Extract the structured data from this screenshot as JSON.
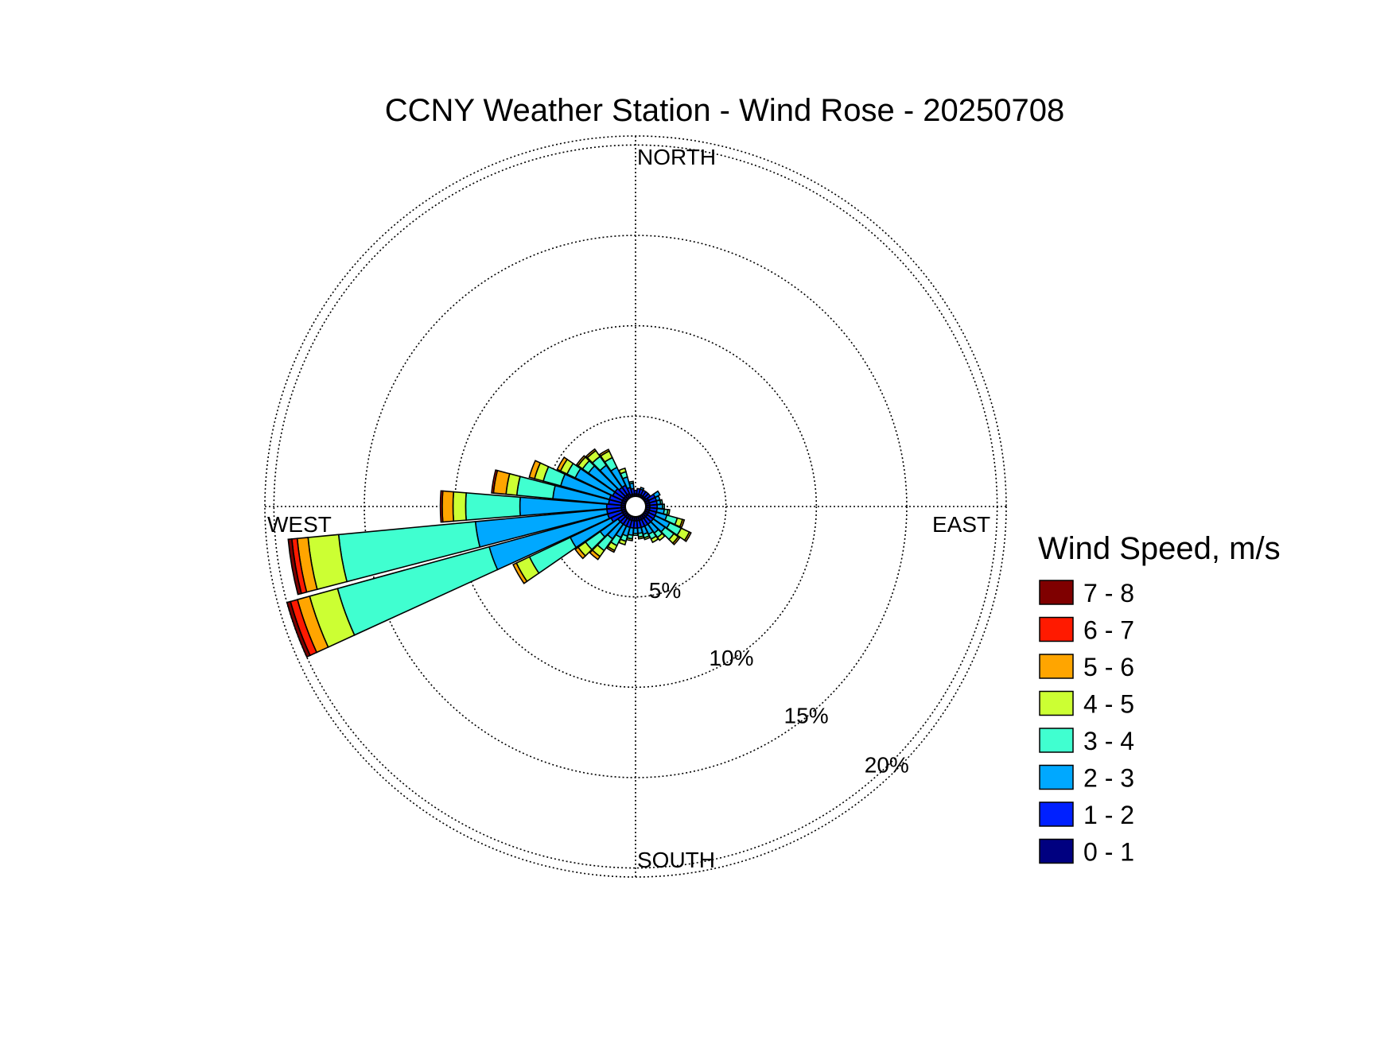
{
  "chart_data": {
    "type": "wind_rose",
    "title": "CCNY Weather Station - Wind Rose - 20250708",
    "direction_labels": {
      "north": "NORTH",
      "east": "EAST",
      "south": "SOUTH",
      "west": "WEST"
    },
    "radial_unit": "%",
    "radial_ticks": [
      5,
      10,
      15,
      20
    ],
    "radial_tick_labels": [
      "5%",
      "10%",
      "15%",
      "20%"
    ],
    "r_max": 20.5,
    "grid": true,
    "sector_count": 36,
    "legend": {
      "title": "Wind Speed, m/s",
      "position": "right",
      "bins": [
        {
          "label": "7 - 8",
          "color": "#7f0000"
        },
        {
          "label": "6 - 7",
          "color": "#ff1a00"
        },
        {
          "label": "5 - 6",
          "color": "#ffa500"
        },
        {
          "label": "4 - 5",
          "color": "#ccff33"
        },
        {
          "label": "3 - 4",
          "color": "#40ffd0"
        },
        {
          "label": "2 - 3",
          "color": "#00a8ff"
        },
        {
          "label": "1 - 2",
          "color": "#0020ff"
        },
        {
          "label": "0 - 1",
          "color": "#000080"
        }
      ]
    },
    "speed_bins_order": [
      "0 - 1",
      "1 - 2",
      "2 - 3",
      "3 - 4",
      "4 - 5",
      "5 - 6",
      "6 - 7",
      "7 - 8"
    ],
    "sectors": [
      {
        "direction": 0,
        "values": [
          0.3,
          0.2,
          0.0,
          0,
          0,
          0,
          0,
          0
        ]
      },
      {
        "direction": 10,
        "values": [
          0.3,
          0.3,
          0.0,
          0,
          0,
          0,
          0,
          0
        ]
      },
      {
        "direction": 20,
        "values": [
          0.3,
          0.3,
          0.1,
          0,
          0,
          0,
          0,
          0
        ]
      },
      {
        "direction": 30,
        "values": [
          0.3,
          0.3,
          0.0,
          0,
          0,
          0,
          0,
          0
        ]
      },
      {
        "direction": 40,
        "values": [
          0.3,
          0.3,
          0.0,
          0,
          0,
          0,
          0,
          0
        ]
      },
      {
        "direction": 50,
        "values": [
          0.3,
          0.3,
          0.0,
          0,
          0,
          0,
          0,
          0
        ]
      },
      {
        "direction": 60,
        "values": [
          0.4,
          0.4,
          0.3,
          0,
          0,
          0,
          0,
          0
        ]
      },
      {
        "direction": 70,
        "values": [
          0.4,
          0.4,
          0.2,
          0,
          0,
          0,
          0,
          0
        ]
      },
      {
        "direction": 80,
        "values": [
          0.4,
          0.4,
          0.2,
          0.1,
          0,
          0,
          0,
          0
        ]
      },
      {
        "direction": 90,
        "values": [
          0.4,
          0.4,
          0.3,
          0.1,
          0,
          0,
          0,
          0
        ]
      },
      {
        "direction": 100,
        "values": [
          0.4,
          0.4,
          0.4,
          0.2,
          0.1,
          0,
          0,
          0
        ]
      },
      {
        "direction": 110,
        "values": [
          0.4,
          0.4,
          0.6,
          0.6,
          0.3,
          0.1,
          0,
          0
        ]
      },
      {
        "direction": 120,
        "values": [
          0.4,
          0.4,
          0.9,
          0.7,
          0.5,
          0.1,
          0,
          0
        ]
      },
      {
        "direction": 130,
        "values": [
          0.4,
          0.4,
          0.8,
          0.6,
          0.3,
          0.1,
          0,
          0
        ]
      },
      {
        "direction": 140,
        "values": [
          0.4,
          0.4,
          0.6,
          0.3,
          0.2,
          0,
          0,
          0
        ]
      },
      {
        "direction": 150,
        "values": [
          0.4,
          0.4,
          0.5,
          0.3,
          0.2,
          0,
          0,
          0
        ]
      },
      {
        "direction": 160,
        "values": [
          0.4,
          0.4,
          0.4,
          0.2,
          0.1,
          0,
          0,
          0
        ]
      },
      {
        "direction": 170,
        "values": [
          0.4,
          0.4,
          0.3,
          0.2,
          0.1,
          0,
          0,
          0
        ]
      },
      {
        "direction": 180,
        "values": [
          0.4,
          0.4,
          0.3,
          0.1,
          0,
          0,
          0,
          0
        ]
      },
      {
        "direction": 190,
        "values": [
          0.4,
          0.4,
          0.4,
          0.2,
          0.1,
          0,
          0,
          0
        ]
      },
      {
        "direction": 200,
        "values": [
          0.4,
          0.4,
          0.5,
          0.3,
          0.2,
          0,
          0,
          0
        ]
      },
      {
        "direction": 210,
        "values": [
          0.4,
          0.4,
          0.7,
          0.5,
          0.3,
          0.1,
          0,
          0
        ]
      },
      {
        "direction": 220,
        "values": [
          0.4,
          0.4,
          1.0,
          0.8,
          0.4,
          0.2,
          0,
          0
        ]
      },
      {
        "direction": 230,
        "values": [
          0.4,
          0.4,
          1.2,
          1.0,
          0.5,
          0.2,
          0,
          0
        ]
      },
      {
        "direction": 240,
        "values": [
          0.4,
          0.7,
          2.5,
          2.5,
          0.8,
          0.2,
          0,
          0
        ]
      },
      {
        "direction": 250,
        "values": [
          0.4,
          0.8,
          6.8,
          8.7,
          1.6,
          0.7,
          0.4,
          0.2
        ]
      },
      {
        "direction": 260,
        "values": [
          0.4,
          0.8,
          7.3,
          7.6,
          1.7,
          0.6,
          0.3,
          0.2
        ]
      },
      {
        "direction": 270,
        "values": [
          0.4,
          0.8,
          4.8,
          3.0,
          0.7,
          0.6,
          0.1,
          0
        ]
      },
      {
        "direction": 280,
        "values": [
          0.4,
          0.7,
          3.1,
          2.0,
          0.6,
          0.7,
          0.1,
          0
        ]
      },
      {
        "direction": 290,
        "values": [
          0.4,
          0.7,
          2.8,
          1.0,
          0.5,
          0.3,
          0,
          0
        ]
      },
      {
        "direction": 300,
        "values": [
          0.4,
          0.6,
          2.3,
          0.5,
          0.4,
          0.2,
          0,
          0
        ]
      },
      {
        "direction": 310,
        "values": [
          0.4,
          0.6,
          1.8,
          0.4,
          0.3,
          0.1,
          0,
          0
        ]
      },
      {
        "direction": 320,
        "values": [
          0.4,
          0.5,
          1.5,
          0.6,
          0.4,
          0.1,
          0,
          0
        ]
      },
      {
        "direction": 330,
        "values": [
          0.4,
          0.5,
          1.1,
          0.6,
          0.4,
          0.1,
          0,
          0
        ]
      },
      {
        "direction": 340,
        "values": [
          0.3,
          0.4,
          0.6,
          0.3,
          0.2,
          0,
          0,
          0
        ]
      },
      {
        "direction": 350,
        "values": [
          0.3,
          0.3,
          0.3,
          0.1,
          0,
          0,
          0,
          0
        ]
      }
    ]
  }
}
